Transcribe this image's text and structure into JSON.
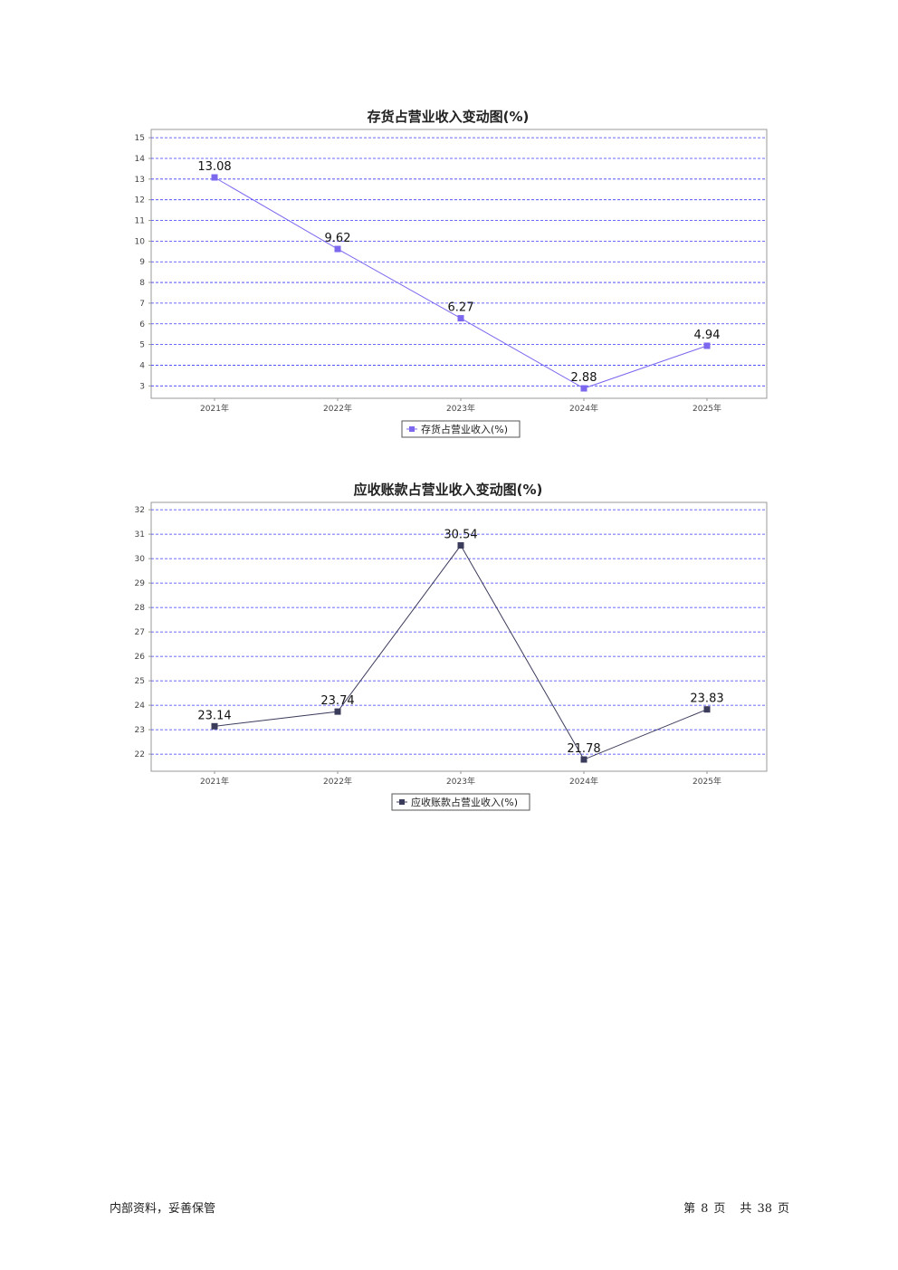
{
  "chart_data": [
    {
      "type": "line",
      "title": "存货占营业收入变动图(%)",
      "categories": [
        "2021年",
        "2022年",
        "2023年",
        "2024年",
        "2025年"
      ],
      "series": [
        {
          "name": "存货占营业收入(%)",
          "values": [
            13.08,
            9.62,
            6.27,
            2.88,
            4.94
          ],
          "color": "#7b68ee"
        }
      ],
      "y_ticks": [
        3,
        4,
        5,
        6,
        7,
        8,
        9,
        10,
        11,
        12,
        13,
        14,
        15
      ],
      "ylim": [
        2.4,
        15.4
      ],
      "grid": "horizontal dashed",
      "legend": "bottom-center",
      "data_labels": [
        "13.08",
        "9.62",
        "6.27",
        "2.88",
        "4.94"
      ]
    },
    {
      "type": "line",
      "title": "应收账款占营业收入变动图(%)",
      "categories": [
        "2021年",
        "2022年",
        "2023年",
        "2024年",
        "2025年"
      ],
      "series": [
        {
          "name": "应收账款占营业收入(%)",
          "values": [
            23.14,
            23.74,
            30.54,
            21.78,
            23.83
          ],
          "color": "#3b3b5c"
        }
      ],
      "y_ticks": [
        22,
        23,
        24,
        25,
        26,
        27,
        28,
        29,
        30,
        31,
        32
      ],
      "ylim": [
        21.3,
        32.3
      ],
      "grid": "horizontal dashed",
      "legend": "bottom-center",
      "data_labels": [
        "23.14",
        "23.74",
        "30.54",
        "21.78",
        "23.83"
      ]
    }
  ],
  "colors": {
    "grid": "#3a3aff",
    "axis": "#999999"
  },
  "footer": {
    "left": "内部资料，妥善保管",
    "page_prefix": "第",
    "page_current": "8",
    "page_mid": "页",
    "total_prefix": "共",
    "page_total": "38",
    "page_suffix": "页"
  }
}
